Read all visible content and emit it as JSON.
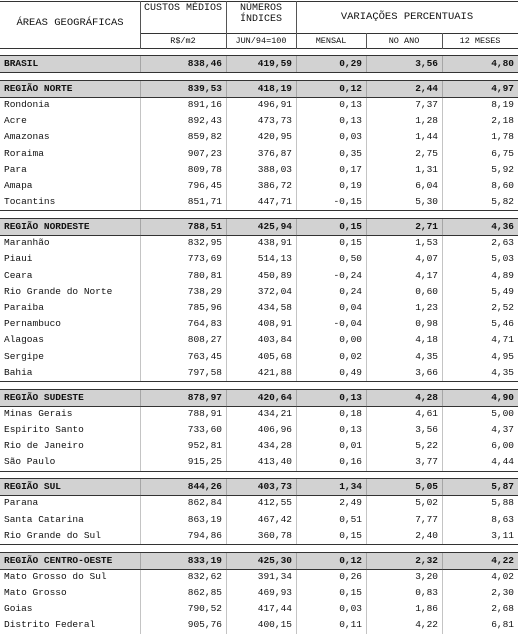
{
  "header": {
    "areas": "ÁREAS GEOGRÁFICAS",
    "custos": "CUSTOS MÉDIOS",
    "custos_unit": "R$/m2",
    "numeros": "NÚMEROS ÍNDICES",
    "numeros_unit": "JUN/94=100",
    "variacoes": "VARIAÇÕES PERCENTUAIS",
    "mensal": "MENSAL",
    "no_ano": "NO ANO",
    "doze_meses": "12 MESES"
  },
  "sections": [
    {
      "rows": [
        [
          "BRASIL",
          "838,46",
          "419,59",
          "0,29",
          "3,56",
          "4,80"
        ]
      ]
    },
    {
      "rows": [
        [
          "REGIÃO NORTE",
          "839,53",
          "418,19",
          "0,12",
          "2,44",
          "4,97"
        ],
        [
          "Rondonia",
          "891,16",
          "496,91",
          "0,13",
          "7,37",
          "8,19"
        ],
        [
          "Acre",
          "892,43",
          "473,73",
          "0,13",
          "1,28",
          "2,18"
        ],
        [
          "Amazonas",
          "859,82",
          "420,95",
          "0,03",
          "1,44",
          "1,78"
        ],
        [
          "Roraima",
          "907,23",
          "376,87",
          "0,35",
          "2,75",
          "6,75"
        ],
        [
          "Para",
          "809,78",
          "388,03",
          "0,17",
          "1,31",
          "5,92"
        ],
        [
          "Amapa",
          "796,45",
          "386,72",
          "0,19",
          "6,04",
          "8,60"
        ],
        [
          "Tocantins",
          "851,71",
          "447,71",
          "-0,15",
          "5,30",
          "5,82"
        ]
      ]
    },
    {
      "rows": [
        [
          "REGIÃO NORDESTE",
          "788,51",
          "425,94",
          "0,15",
          "2,71",
          "4,36"
        ],
        [
          "Maranhão",
          "832,95",
          "438,91",
          "0,15",
          "1,53",
          "2,63"
        ],
        [
          "Piaui",
          "773,69",
          "514,13",
          "0,50",
          "4,07",
          "5,03"
        ],
        [
          "Ceara",
          "780,81",
          "450,89",
          "-0,24",
          "4,17",
          "4,89"
        ],
        [
          "Rio Grande do Norte",
          "738,29",
          "372,04",
          "0,24",
          "0,60",
          "5,49"
        ],
        [
          "Paraiba",
          "785,96",
          "434,58",
          "0,04",
          "1,23",
          "2,52"
        ],
        [
          "Pernambuco",
          "764,83",
          "408,91",
          "-0,04",
          "0,98",
          "5,46"
        ],
        [
          "Alagoas",
          "808,27",
          "403,84",
          "0,00",
          "4,18",
          "4,71"
        ],
        [
          "Sergipe",
          "763,45",
          "405,68",
          "0,02",
          "4,35",
          "4,95"
        ],
        [
          "Bahia",
          "797,58",
          "421,88",
          "0,49",
          "3,66",
          "4,35"
        ]
      ]
    },
    {
      "rows": [
        [
          "REGIÃO SUDESTE",
          "878,97",
          "420,64",
          "0,13",
          "4,28",
          "4,90"
        ],
        [
          "Minas Gerais",
          "788,91",
          "434,21",
          "0,18",
          "4,61",
          "5,00"
        ],
        [
          "Espirito Santo",
          "733,60",
          "406,96",
          "0,13",
          "3,56",
          "4,37"
        ],
        [
          "Rio de Janeiro",
          "952,81",
          "434,28",
          "0,01",
          "5,22",
          "6,00"
        ],
        [
          "São Paulo",
          "915,25",
          "413,40",
          "0,16",
          "3,77",
          "4,44"
        ]
      ]
    },
    {
      "rows": [
        [
          "REGIÃO SUL",
          "844,26",
          "403,73",
          "1,34",
          "5,05",
          "5,87"
        ],
        [
          "Parana",
          "862,84",
          "412,55",
          "2,49",
          "5,02",
          "5,88"
        ],
        [
          "Santa Catarina",
          "863,19",
          "467,42",
          "0,51",
          "7,77",
          "8,63"
        ],
        [
          "Rio Grande do Sul",
          "794,86",
          "360,78",
          "0,15",
          "2,40",
          "3,11"
        ]
      ]
    },
    {
      "rows": [
        [
          "REGIÃO CENTRO-OESTE",
          "833,19",
          "425,30",
          "0,12",
          "2,32",
          "4,22"
        ],
        [
          "Mato Grosso do Sul",
          "832,62",
          "391,34",
          "0,26",
          "3,20",
          "4,02"
        ],
        [
          "Mato Grosso",
          "862,85",
          "469,93",
          "0,15",
          "0,83",
          "2,30"
        ],
        [
          "Goias",
          "790,52",
          "417,44",
          "0,03",
          "1,86",
          "2,68"
        ],
        [
          "Distrito Federal",
          "905,76",
          "400,15",
          "0,11",
          "4,22",
          "6,81"
        ]
      ]
    }
  ]
}
